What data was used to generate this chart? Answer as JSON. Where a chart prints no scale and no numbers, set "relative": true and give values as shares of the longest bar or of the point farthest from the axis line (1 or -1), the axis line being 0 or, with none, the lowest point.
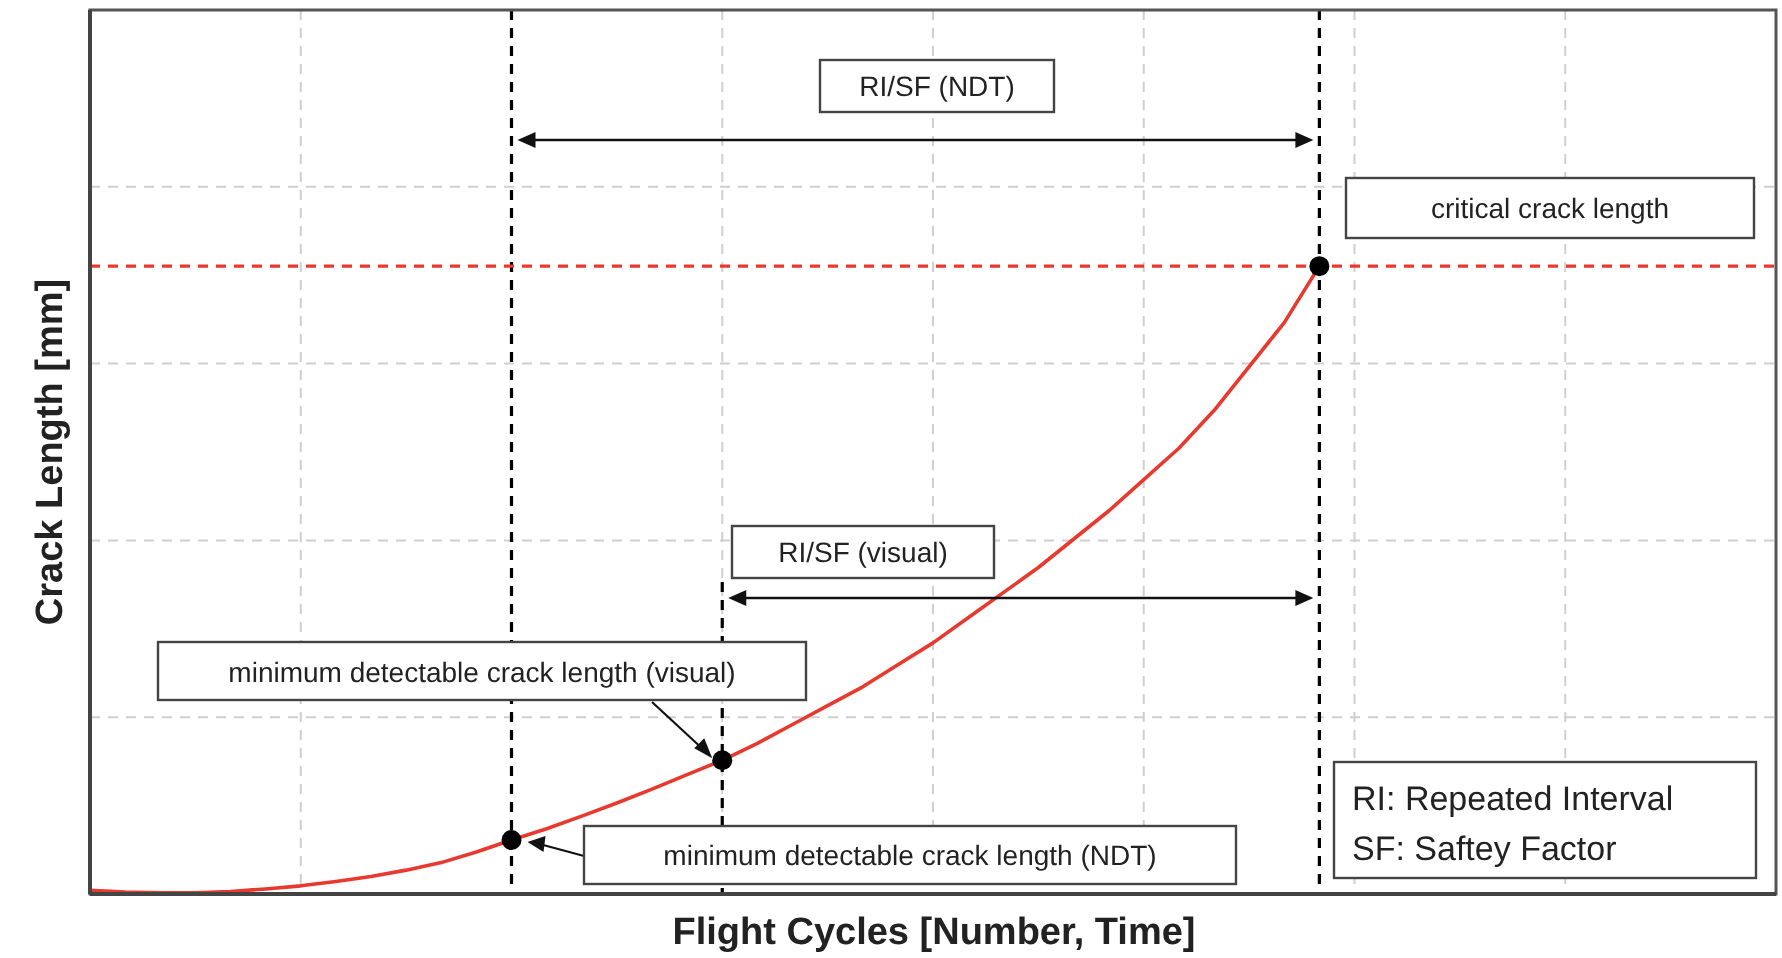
{
  "chart_data": {
    "type": "line",
    "relative": true,
    "xlabel": "Flight Cycles [Number, Time]",
    "ylabel": "Crack Length [mm]",
    "grid": true,
    "categories": [
      null,
      null,
      null,
      null,
      null,
      null,
      null,
      null,
      null,
      null,
      null,
      null,
      null,
      null,
      null,
      null,
      null,
      null,
      null,
      null,
      null,
      null,
      null,
      null,
      null,
      null,
      null,
      null,
      null,
      null,
      null,
      null,
      null,
      null,
      null,
      null
    ],
    "series": [
      {
        "color": "#e8392f",
        "values": [
          0.006,
          0.003,
          0.002,
          0.002,
          0.004,
          0.008,
          0.013,
          0.02,
          0.028,
          0.038,
          0.05,
          0.067,
          0.086,
          0.104,
          0.124,
          0.145,
          0.167,
          0.19,
          0.213,
          0.24,
          0.27,
          0.3,
          0.33,
          0.365,
          0.4,
          0.44,
          0.48,
          0.52,
          0.565,
          0.61,
          0.66,
          0.71,
          0.77,
          0.84,
          0.91,
          1.0
        ]
      }
    ],
    "ref_lines": [
      {
        "axis": "y",
        "value": 1.0,
        "color": "#e8392f",
        "line_style": "dashed"
      }
    ],
    "annotations": [
      "RI/SF (NDT)",
      "critical crack length",
      "RI/SF (visual)",
      "minimum detectable crack length (visual)",
      "minimum detectable crack length (NDT)",
      "RI: Repeated Interval",
      "SF: Saftey Factor"
    ]
  }
}
